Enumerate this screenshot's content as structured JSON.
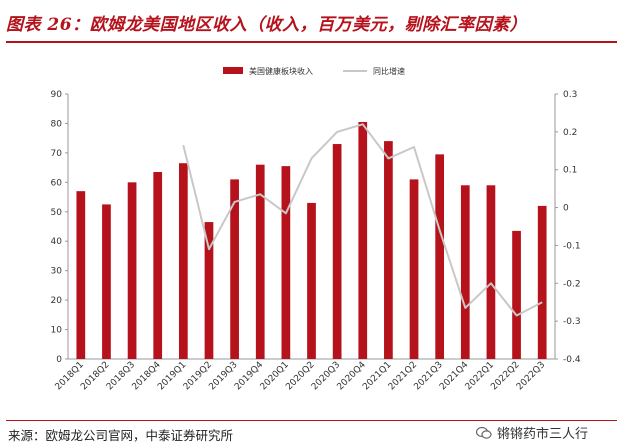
{
  "title": "图表 26：欧姆龙美国地区收入（收入，百万美元，剔除汇率因素）",
  "source": "来源：欧姆龙公司官网，中泰证券研究所",
  "watermark": "锵锵药市三人行",
  "colors": {
    "bar": "#b5121b",
    "line": "#c8c8c8",
    "accent": "#b5121b"
  },
  "chart_data": {
    "type": "bar",
    "categories": [
      "2018Q1",
      "2018Q2",
      "2018Q3",
      "2018Q4",
      "2019Q1",
      "2019Q2",
      "2019Q3",
      "2019Q4",
      "2020Q1",
      "2020Q2",
      "2020Q3",
      "2020Q4",
      "2021Q1",
      "2021Q2",
      "2021Q3",
      "2021Q4",
      "2022Q1",
      "2022Q2",
      "2022Q3"
    ],
    "series": [
      {
        "name": "美国健康板块收入",
        "type": "bar",
        "axis": "left",
        "values": [
          57,
          52.5,
          60,
          63.5,
          66.5,
          46.5,
          61,
          66,
          65.5,
          53,
          73,
          80.5,
          74,
          61,
          69.5,
          59,
          59,
          43.5,
          52
        ]
      },
      {
        "name": "同比增速",
        "type": "line",
        "axis": "right",
        "values": [
          null,
          null,
          null,
          null,
          0.165,
          -0.11,
          0.015,
          0.035,
          -0.015,
          0.13,
          0.2,
          0.22,
          0.13,
          0.16,
          -0.06,
          -0.265,
          -0.2,
          -0.285,
          -0.25
        ]
      }
    ],
    "ylim_left": [
      0,
      90
    ],
    "yticks_left": [
      0,
      10,
      20,
      30,
      40,
      50,
      60,
      70,
      80,
      90
    ],
    "ylim_right": [
      -0.4,
      0.3
    ],
    "yticks_right": [
      "-0.4",
      "-0.3",
      "-0.2",
      "-0.1",
      "0",
      "0.1",
      "0.2",
      "0.3"
    ],
    "legend": "top-center",
    "grid": false
  }
}
